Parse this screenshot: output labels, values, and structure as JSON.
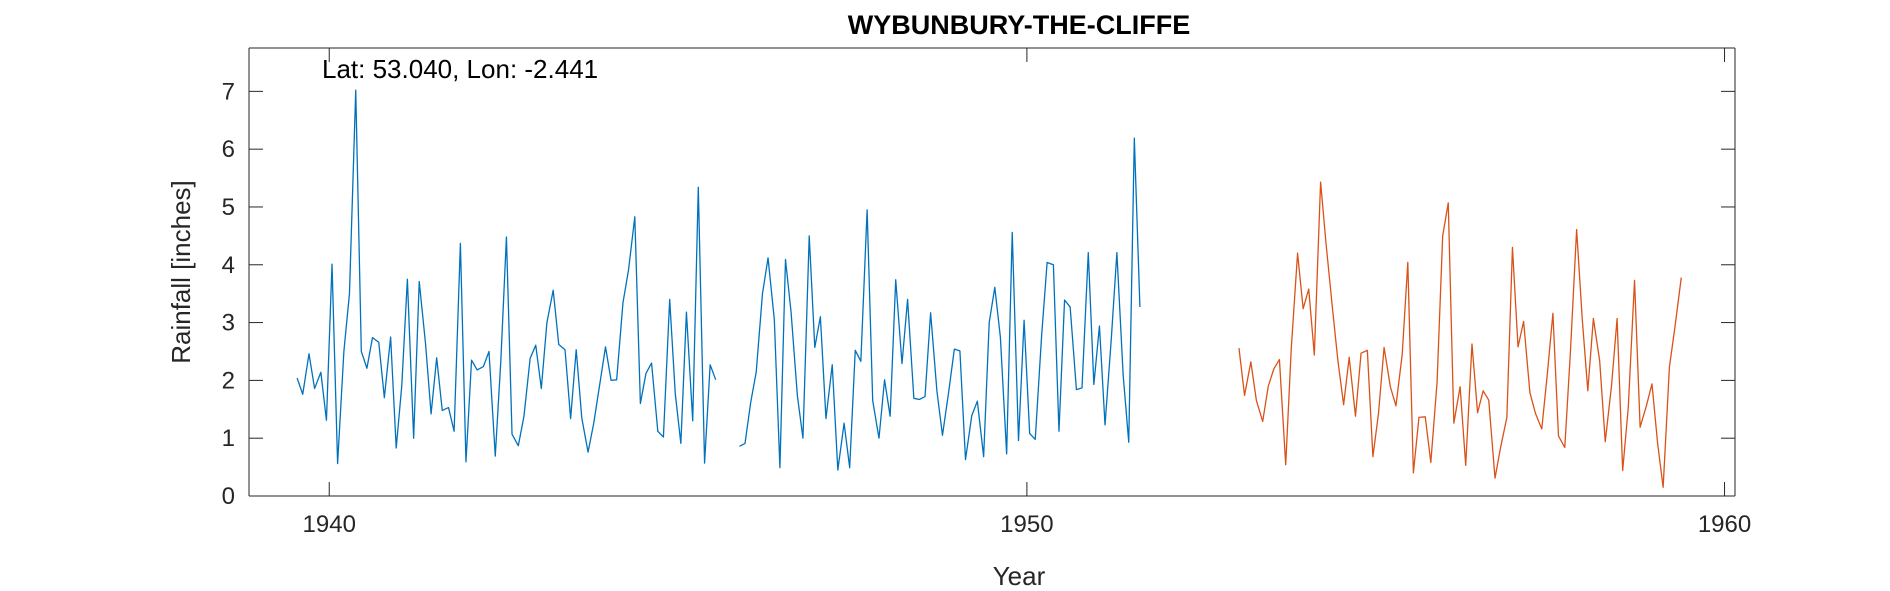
{
  "chart_data": {
    "type": "line",
    "title": "WYBUNBURY-THE-CLIFFE",
    "annotation": "Lat: 53.040, Lon: -2.441",
    "xlabel": "Year",
    "ylabel": "Rainfall [inches]",
    "xlim": [
      1938.85,
      1960.15
    ],
    "ylim": [
      0,
      7.75
    ],
    "xticks": [
      1940,
      1950,
      1960
    ],
    "yticks": [
      0,
      1,
      2,
      3,
      4,
      5,
      6,
      7
    ],
    "grid": false,
    "series": [
      {
        "color": "#0072BD",
        "points": [
          [
            1939.54,
            2.04
          ],
          [
            1939.62,
            1.76
          ],
          [
            1939.71,
            2.46
          ],
          [
            1939.79,
            1.86
          ],
          [
            1939.88,
            2.14
          ],
          [
            1939.96,
            1.31
          ],
          [
            1940.04,
            4.01
          ],
          [
            1940.12,
            0.56
          ],
          [
            1940.21,
            2.5
          ],
          [
            1940.29,
            3.5
          ],
          [
            1940.38,
            7.02
          ],
          [
            1940.46,
            2.5
          ],
          [
            1940.54,
            2.21
          ],
          [
            1940.62,
            2.74
          ],
          [
            1940.71,
            2.66
          ],
          [
            1940.79,
            1.7
          ],
          [
            1940.88,
            2.75
          ],
          [
            1940.96,
            0.83
          ],
          [
            1941.04,
            1.91
          ],
          [
            1941.12,
            3.75
          ],
          [
            1941.21,
            1.0
          ],
          [
            1941.29,
            3.71
          ],
          [
            1941.38,
            2.64
          ],
          [
            1941.46,
            1.42
          ],
          [
            1941.54,
            2.39
          ],
          [
            1941.62,
            1.48
          ],
          [
            1941.71,
            1.53
          ],
          [
            1941.79,
            1.12
          ],
          [
            1941.88,
            4.37
          ],
          [
            1941.96,
            0.59
          ],
          [
            1942.04,
            2.35
          ],
          [
            1942.12,
            2.18
          ],
          [
            1942.21,
            2.24
          ],
          [
            1942.29,
            2.5
          ],
          [
            1942.38,
            0.69
          ],
          [
            1942.46,
            2.35
          ],
          [
            1942.54,
            4.48
          ],
          [
            1942.62,
            1.07
          ],
          [
            1942.71,
            0.87
          ],
          [
            1942.79,
            1.37
          ],
          [
            1942.88,
            2.38
          ],
          [
            1942.96,
            2.61
          ],
          [
            1943.04,
            1.86
          ],
          [
            1943.12,
            3.0
          ],
          [
            1943.21,
            3.56
          ],
          [
            1943.29,
            2.62
          ],
          [
            1943.38,
            2.53
          ],
          [
            1943.46,
            1.34
          ],
          [
            1943.54,
            2.53
          ],
          [
            1943.62,
            1.35
          ],
          [
            1943.71,
            0.76
          ],
          [
            1943.79,
            1.25
          ],
          [
            1943.88,
            1.95
          ],
          [
            1943.96,
            2.58
          ],
          [
            1944.04,
            2.0
          ],
          [
            1944.12,
            2.01
          ],
          [
            1944.21,
            3.34
          ],
          [
            1944.29,
            3.91
          ],
          [
            1944.38,
            4.83
          ],
          [
            1944.46,
            1.6
          ],
          [
            1944.54,
            2.12
          ],
          [
            1944.62,
            2.3
          ],
          [
            1944.71,
            1.12
          ],
          [
            1944.79,
            1.02
          ],
          [
            1944.88,
            3.4
          ],
          [
            1944.96,
            1.77
          ],
          [
            1945.04,
            0.91
          ],
          [
            1945.12,
            3.18
          ],
          [
            1945.21,
            1.3
          ],
          [
            1945.29,
            5.34
          ],
          [
            1945.38,
            0.57
          ],
          [
            1945.46,
            2.27
          ],
          [
            1945.54,
            2.01
          ],
          null,
          [
            1945.88,
            0.86
          ],
          [
            1945.96,
            0.91
          ],
          [
            1946.04,
            1.61
          ],
          [
            1946.12,
            2.14
          ],
          [
            1946.21,
            3.5
          ],
          [
            1946.29,
            4.12
          ],
          [
            1946.38,
            3.05
          ],
          [
            1946.46,
            0.49
          ],
          [
            1946.54,
            4.09
          ],
          [
            1946.62,
            3.18
          ],
          [
            1946.71,
            1.74
          ],
          [
            1946.79,
            1.0
          ],
          [
            1946.88,
            4.5
          ],
          [
            1946.96,
            2.57
          ],
          [
            1947.04,
            3.1
          ],
          [
            1947.12,
            1.34
          ],
          [
            1947.21,
            2.27
          ],
          [
            1947.29,
            0.45
          ],
          [
            1947.38,
            1.26
          ],
          [
            1947.46,
            0.49
          ],
          [
            1947.54,
            2.52
          ],
          [
            1947.62,
            2.33
          ],
          [
            1947.71,
            4.95
          ],
          [
            1947.79,
            1.65
          ],
          [
            1947.88,
            1.0
          ],
          [
            1947.96,
            2.01
          ],
          [
            1948.04,
            1.38
          ],
          [
            1948.12,
            3.74
          ],
          [
            1948.21,
            2.29
          ],
          [
            1948.29,
            3.4
          ],
          [
            1948.38,
            1.69
          ],
          [
            1948.46,
            1.67
          ],
          [
            1948.54,
            1.72
          ],
          [
            1948.62,
            3.17
          ],
          [
            1948.71,
            1.82
          ],
          [
            1948.79,
            1.05
          ],
          [
            1948.88,
            1.81
          ],
          [
            1948.96,
            2.54
          ],
          [
            1949.04,
            2.51
          ],
          [
            1949.12,
            0.63
          ],
          [
            1949.21,
            1.39
          ],
          [
            1949.29,
            1.64
          ],
          [
            1949.38,
            0.68
          ],
          [
            1949.46,
            3.0
          ],
          [
            1949.54,
            3.61
          ],
          [
            1949.62,
            2.75
          ],
          [
            1949.71,
            0.73
          ],
          [
            1949.79,
            4.56
          ],
          [
            1949.88,
            0.96
          ],
          [
            1949.96,
            3.04
          ],
          [
            1950.04,
            1.08
          ],
          [
            1950.12,
            0.98
          ],
          [
            1950.21,
            2.75
          ],
          [
            1950.29,
            4.04
          ],
          [
            1950.38,
            4.0
          ],
          [
            1950.46,
            1.12
          ],
          [
            1950.54,
            3.39
          ],
          [
            1950.62,
            3.27
          ],
          [
            1950.71,
            1.84
          ],
          [
            1950.79,
            1.87
          ],
          [
            1950.88,
            4.21
          ],
          [
            1950.96,
            1.93
          ],
          [
            1951.04,
            2.94
          ],
          [
            1951.12,
            1.23
          ],
          [
            1951.21,
            2.72
          ],
          [
            1951.29,
            4.21
          ],
          [
            1951.38,
            2.09
          ],
          [
            1951.46,
            0.93
          ],
          [
            1951.54,
            6.19
          ],
          [
            1951.62,
            3.27
          ]
        ]
      },
      {
        "color": "#D95319",
        "points": [
          [
            1953.04,
            2.56
          ],
          [
            1953.12,
            1.74
          ],
          [
            1953.21,
            2.32
          ],
          [
            1953.29,
            1.65
          ],
          [
            1953.38,
            1.29
          ],
          [
            1953.46,
            1.9
          ],
          [
            1953.54,
            2.2
          ],
          [
            1953.62,
            2.36
          ],
          [
            1953.71,
            0.54
          ],
          [
            1953.79,
            2.56
          ],
          [
            1953.88,
            4.2
          ],
          [
            1953.96,
            3.24
          ],
          [
            1954.04,
            3.58
          ],
          [
            1954.12,
            2.44
          ],
          [
            1954.21,
            5.43
          ],
          [
            1954.29,
            4.34
          ],
          [
            1954.38,
            3.25
          ],
          [
            1954.46,
            2.32
          ],
          [
            1954.54,
            1.58
          ],
          [
            1954.62,
            2.4
          ],
          [
            1954.71,
            1.38
          ],
          [
            1954.79,
            2.47
          ],
          [
            1954.88,
            2.52
          ],
          [
            1954.96,
            0.68
          ],
          [
            1955.04,
            1.43
          ],
          [
            1955.12,
            2.57
          ],
          [
            1955.21,
            1.89
          ],
          [
            1955.29,
            1.56
          ],
          [
            1955.38,
            2.45
          ],
          [
            1955.46,
            4.04
          ],
          [
            1955.54,
            0.4
          ],
          [
            1955.62,
            1.36
          ],
          [
            1955.71,
            1.37
          ],
          [
            1955.79,
            0.58
          ],
          [
            1955.88,
            1.98
          ],
          [
            1955.96,
            4.5
          ],
          [
            1956.04,
            5.07
          ],
          [
            1956.12,
            1.26
          ],
          [
            1956.21,
            1.89
          ],
          [
            1956.29,
            0.53
          ],
          [
            1956.38,
            2.63
          ],
          [
            1956.46,
            1.44
          ],
          [
            1956.54,
            1.82
          ],
          [
            1956.62,
            1.66
          ],
          [
            1956.71,
            0.31
          ],
          [
            1956.79,
            0.84
          ],
          [
            1956.88,
            1.36
          ],
          [
            1956.96,
            4.3
          ],
          [
            1957.04,
            2.58
          ],
          [
            1957.12,
            3.02
          ],
          [
            1957.21,
            1.79
          ],
          [
            1957.29,
            1.43
          ],
          [
            1957.38,
            1.16
          ],
          [
            1957.46,
            2.11
          ],
          [
            1957.54,
            3.16
          ],
          [
            1957.62,
            1.04
          ],
          [
            1957.71,
            0.84
          ],
          [
            1957.79,
            2.47
          ],
          [
            1957.88,
            4.61
          ],
          [
            1957.96,
            3.07
          ],
          [
            1958.04,
            1.82
          ],
          [
            1958.12,
            3.07
          ],
          [
            1958.21,
            2.34
          ],
          [
            1958.29,
            0.94
          ],
          [
            1958.38,
            1.91
          ],
          [
            1958.46,
            3.07
          ],
          [
            1958.54,
            0.44
          ],
          [
            1958.62,
            1.53
          ],
          [
            1958.71,
            3.73
          ],
          [
            1958.79,
            1.19
          ],
          [
            1958.88,
            1.56
          ],
          [
            1958.96,
            1.94
          ],
          [
            1959.04,
            0.92
          ],
          [
            1959.12,
            0.15
          ],
          [
            1959.21,
            2.23
          ],
          [
            1959.29,
            2.93
          ],
          [
            1959.38,
            3.78
          ]
        ]
      }
    ]
  }
}
